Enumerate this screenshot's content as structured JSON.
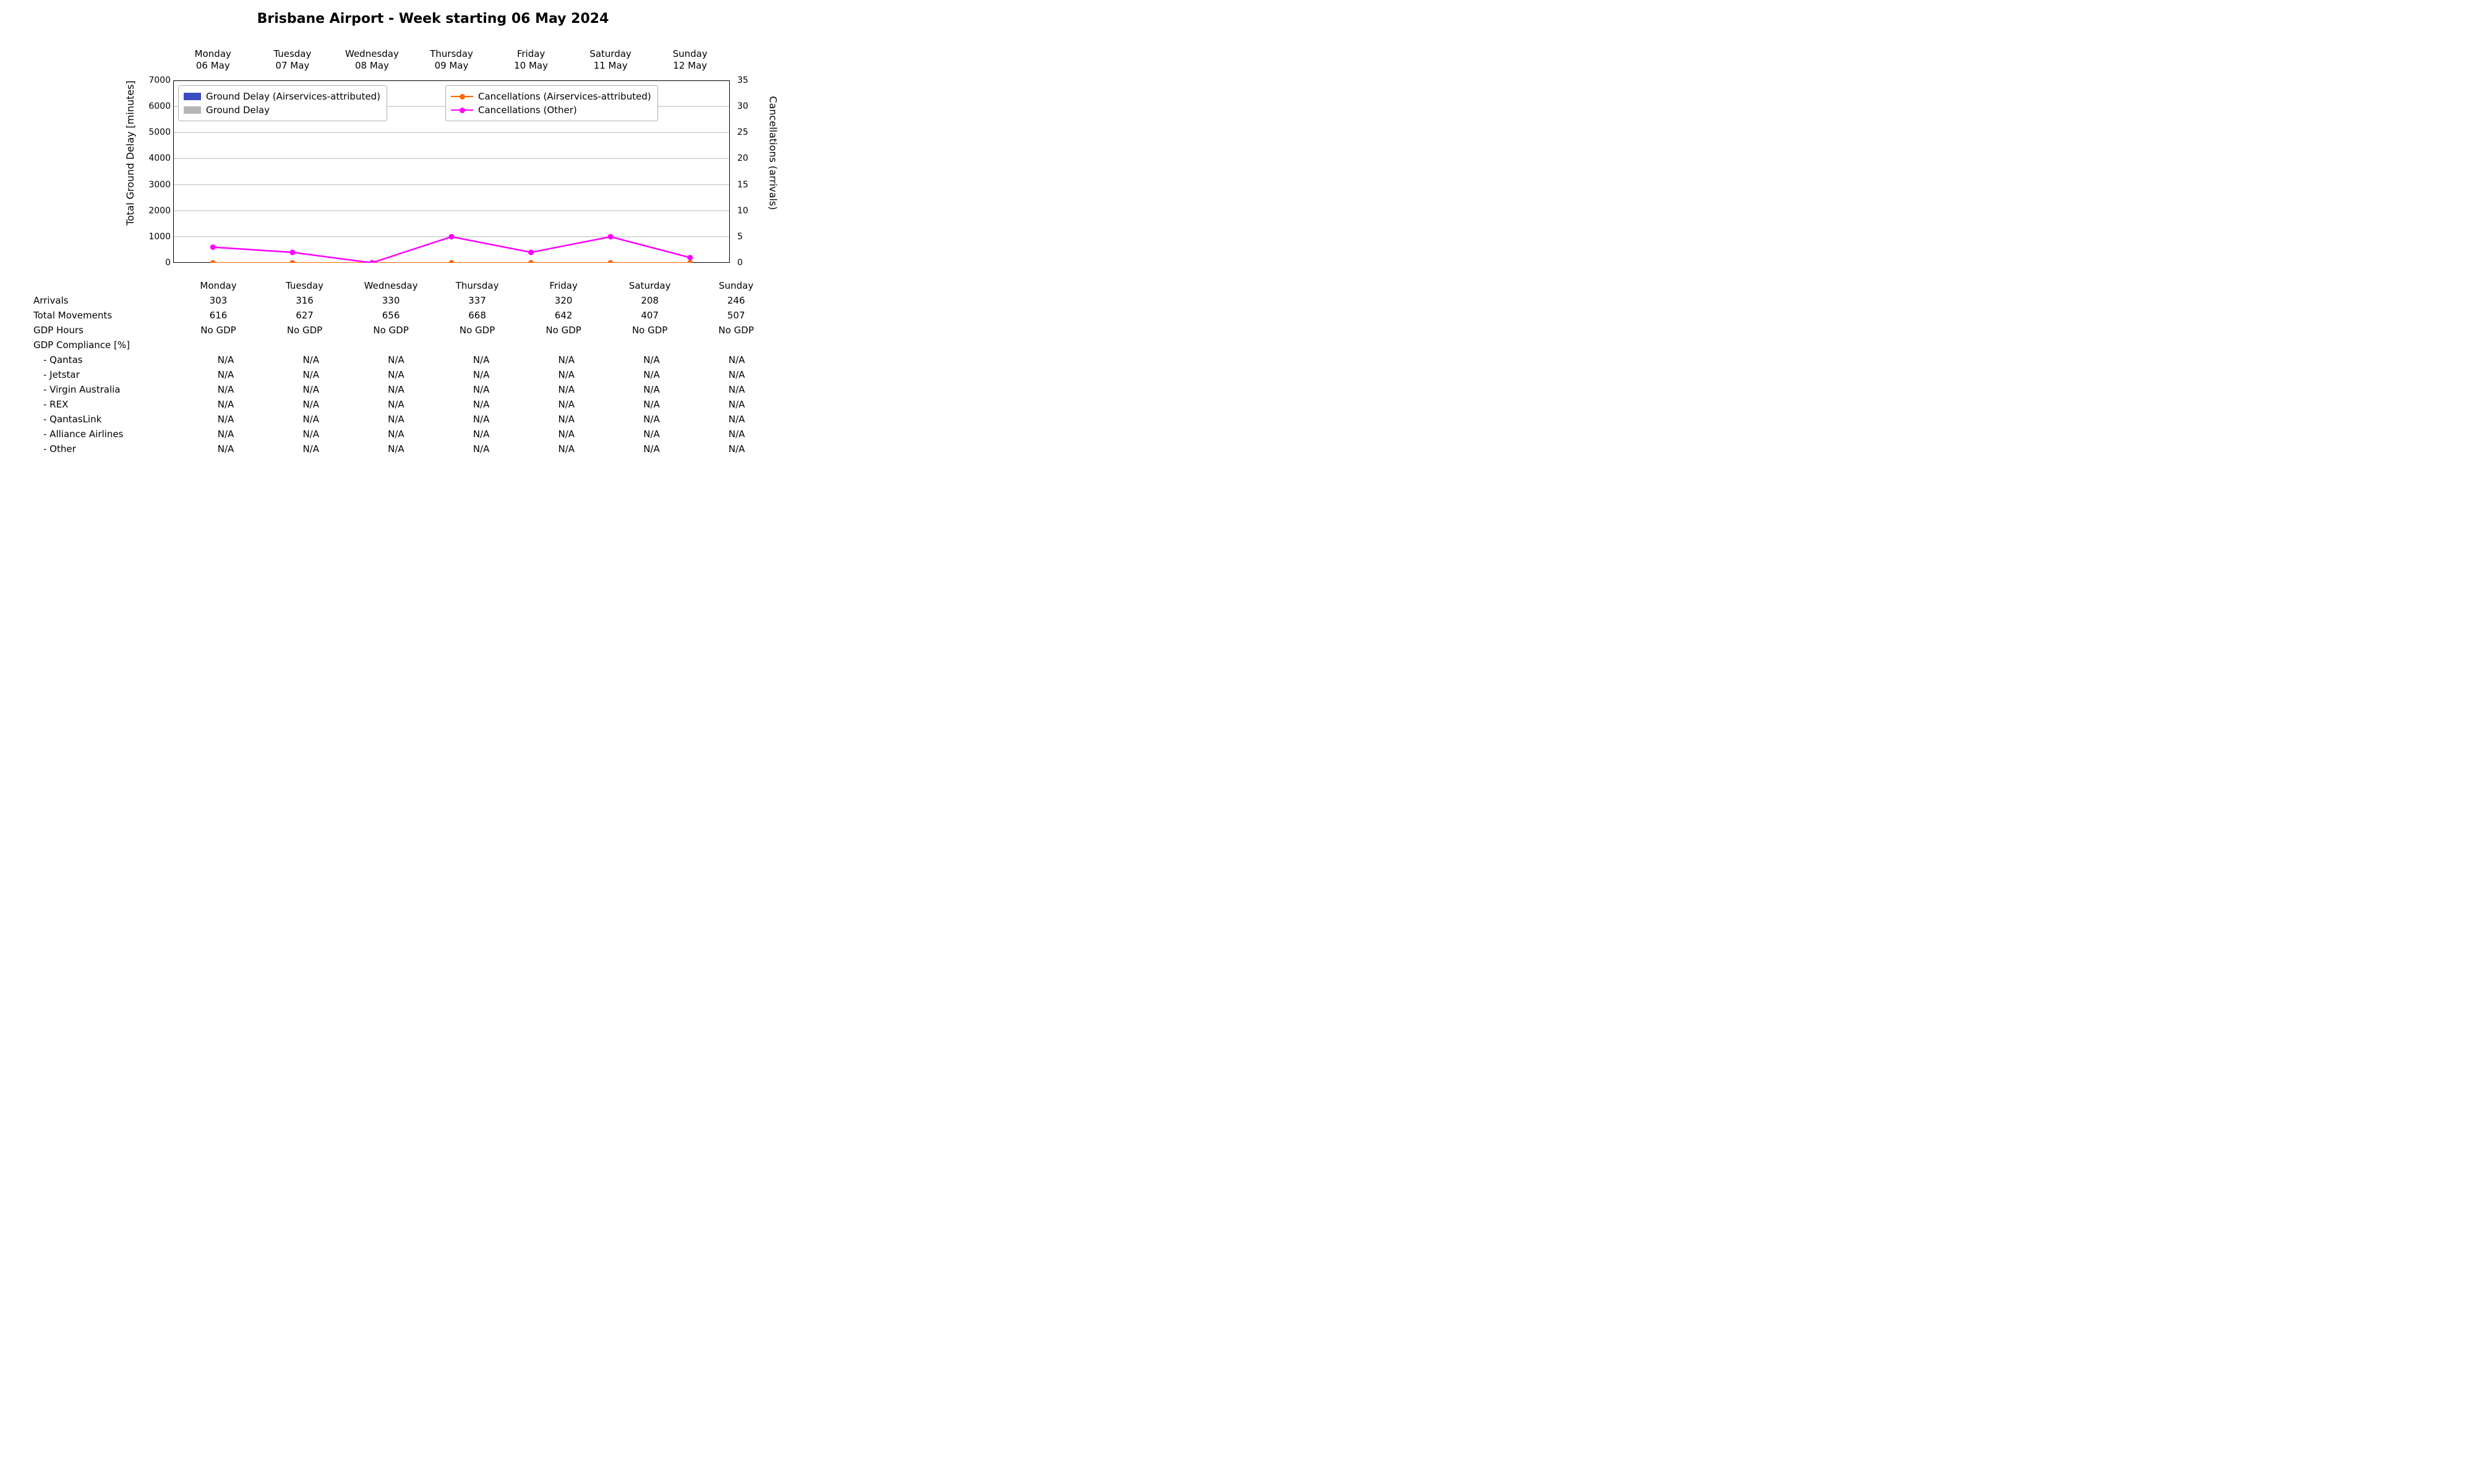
{
  "title": "Brisbane Airport - Week starting 06 May 2024",
  "title_fontsize": 22,
  "background_color": "#ffffff",
  "grid_color": "#b8b8b8",
  "axis_color": "#000000",
  "text_color": "#000000",
  "font_family": "DejaVu Sans",
  "chart": {
    "type": "bar+line-dual-axis",
    "days": [
      {
        "short": "Monday",
        "date": "06 May"
      },
      {
        "short": "Tuesday",
        "date": "07 May"
      },
      {
        "short": "Wednesday",
        "date": "08 May"
      },
      {
        "short": "Thursday",
        "date": "09 May"
      },
      {
        "short": "Friday",
        "date": "10 May"
      },
      {
        "short": "Saturday",
        "date": "11 May"
      },
      {
        "short": "Sunday",
        "date": "12 May"
      }
    ],
    "y_left": {
      "label": "Total Ground Delay [minutes]",
      "min": 0,
      "max": 7000,
      "tick_step": 1000,
      "ticks": [
        0,
        1000,
        2000,
        3000,
        4000,
        5000,
        6000,
        7000
      ]
    },
    "y_right": {
      "label": "Cancellations (arrivals)",
      "min": 0,
      "max": 35,
      "tick_step": 5,
      "ticks": [
        0,
        5,
        10,
        15,
        20,
        25,
        30,
        35
      ]
    },
    "series": {
      "ground_delay_airservices": {
        "legend": "Ground Delay (Airservices-attributed)",
        "type": "bar",
        "axis": "left",
        "color": "#3b4cc0",
        "values": [
          0,
          0,
          0,
          0,
          0,
          0,
          0
        ]
      },
      "ground_delay": {
        "legend": "Ground Delay",
        "type": "bar",
        "axis": "left",
        "color": "#b5b5b5",
        "values": [
          0,
          0,
          0,
          0,
          0,
          0,
          0
        ]
      },
      "cancellations_airservices": {
        "legend": "Cancellations (Airservices-attributed)",
        "type": "line",
        "axis": "right",
        "color": "#ff6400",
        "marker": "circle",
        "marker_size": 9,
        "line_width": 2,
        "values": [
          0,
          0,
          0,
          0,
          0,
          0,
          0
        ]
      },
      "cancellations_other": {
        "legend": "Cancellations (Other)",
        "type": "line",
        "axis": "right",
        "color": "#ff00ff",
        "marker": "circle",
        "marker_size": 9,
        "line_width": 2.5,
        "values": [
          3,
          2,
          0,
          5,
          2,
          5,
          1
        ]
      }
    },
    "legend_groups": [
      [
        "ground_delay_airservices",
        "ground_delay"
      ],
      [
        "cancellations_airservices",
        "cancellations_other"
      ]
    ],
    "bar_width": 0.35
  },
  "table": {
    "day_headers": [
      "Monday",
      "Tuesday",
      "Wednesday",
      "Thursday",
      "Friday",
      "Saturday",
      "Sunday"
    ],
    "rows": [
      {
        "label": "Arrivals",
        "indent": false,
        "values": [
          "303",
          "316",
          "330",
          "337",
          "320",
          "208",
          "246"
        ]
      },
      {
        "label": "Total Movements",
        "indent": false,
        "values": [
          "616",
          "627",
          "656",
          "668",
          "642",
          "407",
          "507"
        ]
      },
      {
        "label": "GDP Hours",
        "indent": false,
        "values": [
          "No GDP",
          "No GDP",
          "No GDP",
          "No GDP",
          "No GDP",
          "No GDP",
          "No GDP"
        ]
      },
      {
        "label": "GDP Compliance [%]",
        "indent": false,
        "values": [
          "",
          "",
          "",
          "",
          "",
          "",
          ""
        ]
      },
      {
        "label": "- Qantas",
        "indent": true,
        "values": [
          "N/A",
          "N/A",
          "N/A",
          "N/A",
          "N/A",
          "N/A",
          "N/A"
        ]
      },
      {
        "label": "- Jetstar",
        "indent": true,
        "values": [
          "N/A",
          "N/A",
          "N/A",
          "N/A",
          "N/A",
          "N/A",
          "N/A"
        ]
      },
      {
        "label": "- Virgin Australia",
        "indent": true,
        "values": [
          "N/A",
          "N/A",
          "N/A",
          "N/A",
          "N/A",
          "N/A",
          "N/A"
        ]
      },
      {
        "label": "- REX",
        "indent": true,
        "values": [
          "N/A",
          "N/A",
          "N/A",
          "N/A",
          "N/A",
          "N/A",
          "N/A"
        ]
      },
      {
        "label": "- QantasLink",
        "indent": true,
        "values": [
          "N/A",
          "N/A",
          "N/A",
          "N/A",
          "N/A",
          "N/A",
          "N/A"
        ]
      },
      {
        "label": "- Alliance Airlines",
        "indent": true,
        "values": [
          "N/A",
          "N/A",
          "N/A",
          "N/A",
          "N/A",
          "N/A",
          "N/A"
        ]
      },
      {
        "label": "- Other",
        "indent": true,
        "values": [
          "N/A",
          "N/A",
          "N/A",
          "N/A",
          "N/A",
          "N/A",
          "N/A"
        ]
      }
    ]
  }
}
